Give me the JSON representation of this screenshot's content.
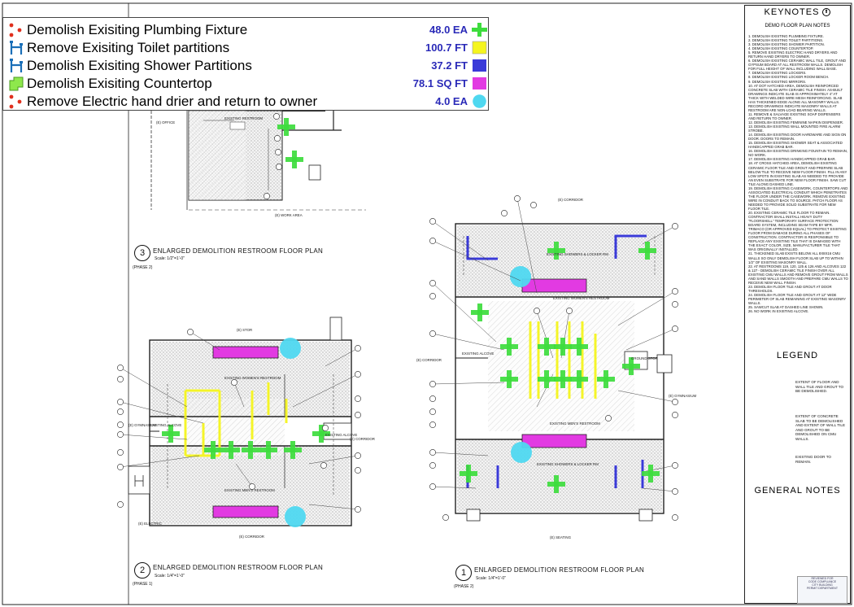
{
  "takeoff_legend": {
    "items": [
      {
        "label": "Demolish Exisiting Plumbing Fixture",
        "quantity": "48.0 EA",
        "icon": "red-dot-measure-icon",
        "marker": "green-cross",
        "color": "#3ddc3d"
      },
      {
        "label": "Remove Exisiting Toilet partitions",
        "quantity": "100.7 FT",
        "icon": "blue-bracket-icon",
        "marker": "yellow-square",
        "color": "#f5f51e"
      },
      {
        "label": "Demolish Exisiting Shower Partitions",
        "quantity": "37.2 FT",
        "icon": "blue-bracket-icon",
        "marker": "blue-square",
        "color": "#3a3ad8"
      },
      {
        "label": "Demolish Exisiting Countertop",
        "quantity": "78.1 SQ FT",
        "icon": "green-area-icon",
        "marker": "magenta-square",
        "color": "#e23ae2"
      },
      {
        "label": "Remove Electric hand drier and return to owner",
        "quantity": "4.0 EA",
        "icon": "red-dot-measure-icon",
        "marker": "cyan-circle",
        "color": "#4fd8f0"
      }
    ]
  },
  "keynotes": {
    "title": "KEYNOTES",
    "subtitle": "DEMO FLOOR PLAN NOTES",
    "notes": [
      "1. Demolish existing plumbing fixture.",
      "2. Demolish existing toilet partitions.",
      "3. Demolish existing shower partition.",
      "4. Demolish existing countertop.",
      "5. Remove existing electric hand dryers and return hand dryers to owner.",
      "6. Demolish existing ceramic wall tile, grout and gypsum board at all restroom walls. Demolish for full height of wall including wall base.",
      "7. Demolish existing lockers.",
      "8. Demolish existing locker room bench.",
      "9. Demolish existing mirrors.",
      "10. At dot hatched area, demolish reinforced concrete slab with ceramic tile finish. As-built drawings indicate slab is approximately 4\" at thick with welded wire mesh reinforcing. Slab has thickened edge along all masonry walls. Record drawings indicate masonry walls at restroom are non-load bearing walls.",
      "11. Remove & salvage existing soap dispensers and return to owner.",
      "12. Demolish existing feminine napkin dispenser.",
      "13. Demolish existing wall mounted fire alarm strobe.",
      "14. Demolish existing door hardware and sign on door. Doors to remain.",
      "15. Demolish existing shower seat & associated handicapped grab bar.",
      "16. Demolish existing drinking fountain to remain, no work.",
      "17. Demolish existing handicapped grab bar.",
      "18. At cross hatched area, demolish existing ceramic floor tile and grout and prepare slab below tile to receive new floor finish. Fill in any low spots in existing slab as needed to provide an even substrate for new floor finish. Saw cut tile along dashed line.",
      "19. Demolish existing casework, countertops and associated electrical conduit which penetrates the floor under the casework. Remove existing wire in conduit back to source. Patch floor as needed to provide solid substrate for new floor tile.",
      "20. Existing ceramic tile floor to remain. Contractor shall install heavy duty \"floorshell\" temporary surface protection board system, including seam tape by MFR. Trimaco (or approved equal) to protect existing floor from damage during all phases of construction. Contractor is responsible to replace any existing tile that is damaged with the exact color, size, manufacturer tile that was originally installed.",
      "21. Thickened slab exists below all 8x8x16 CMU walls so only demolish floor slab up to within 1/2\" of existing masonry wall.",
      "22. At restrooms 119, 120, 125 & 126 and alcoves 122 & 127 - demolish ceramic tile finish over all existing CMU walls and remove grout from walls and sand walls smooth and prepare CMU walls to receive new wall finish.",
      "23. Demolish floor tile and grout at door thresholds.",
      "24. Demolish floor tile and grout at 12\" wide perimeter of slab remaining at existing masonry walls.",
      "25. Sawcut slab at dashed line shown.",
      "26. No work in existing alcove."
    ],
    "legend_title": "LEGEND",
    "legend_items": [
      "Extent of floor and wall tile and grout to be demolished.",
      "Extent of concrete slab to be demolished and extent of wall tile and grout to be demolished on CMU walls.",
      "Existing door to remain."
    ],
    "general_notes_title": "GENERAL NOTES",
    "stamp_lines": [
      "REVIEWED FOR",
      "CODE COMPLIANCE",
      "CITY BUILDING",
      "PERMIT DEPARTMENT"
    ]
  },
  "plans": [
    {
      "number": "3",
      "title": "ENLARGED DEMOLITION RESTROOM FLOOR PLAN",
      "scale": "Scale: 1/2\"=1'-0\"",
      "phase": "(PHASE 2)"
    },
    {
      "number": "2",
      "title": "ENLARGED DEMOLITION RESTROOM FLOOR PLAN",
      "scale": "Scale: 1/4\"=1'-0\"",
      "phase": "(PHASE 1)"
    },
    {
      "number": "1",
      "title": "ENLARGED DEMOLITION RESTROOM FLOOR PLAN",
      "scale": "Scale: 1/4\"=1'-0\"",
      "phase": "(PHASE 2)"
    }
  ],
  "rooms": {
    "p3_office": "(E) OFFICE",
    "p3_restroom": "EXISTING RESTROOM",
    "p3_work_area": "(E) WORK AREA",
    "p2_stor": "(E) STOR",
    "p2_womens": "EXISTING WOMEN'S RESTROOM",
    "p2_gymnasium": "(E) GYMNASIUM",
    "p2_alcove": "EXISTING ALCOVE",
    "p2_mens": "EXISTING MEN'S RESTROOM",
    "p2_corridor_right": "(E) CORRIDOR",
    "p2_alcove_right": "EXISTING ALCOVE",
    "p2_electric": "(E) ELECTRIC",
    "p2_corridor_bottom": "(E) CORRIDOR",
    "p1_corridor_top": "(E) CORRIDOR",
    "p1_showers_top": "EXISTING SHOWERS & LOCKER RM",
    "p1_womens": "EXISTING WOMEN'S RESTROOM",
    "p1_corridor_left": "(E) CORRIDOR",
    "p1_alcove": "EXISTING ALCOVE",
    "p1_gymnasium": "(E) GYMNASIUM",
    "p1_mens": "EXISTING MEN'S RESTROOM",
    "p1_showers_bottom": "EXISTING SHOWERS & LOCKER RM",
    "p1_seating": "(E) SEATING",
    "p1_ground": "GROUND STOR"
  }
}
